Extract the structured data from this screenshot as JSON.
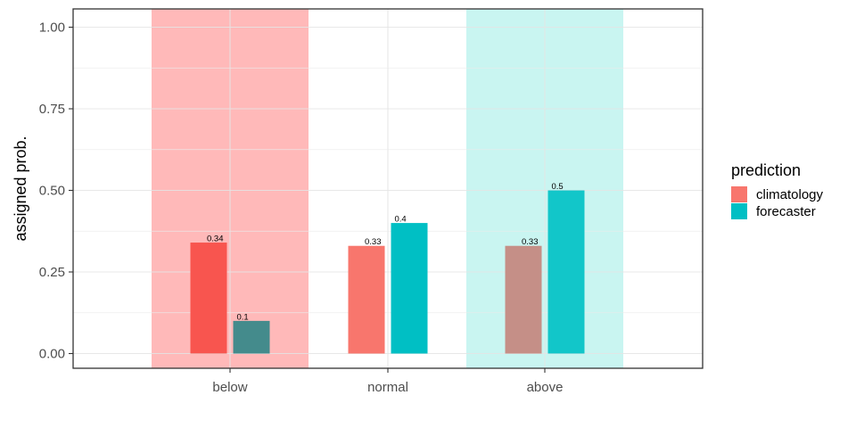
{
  "chart_data": {
    "type": "bar",
    "categories": [
      "below",
      "normal",
      "above"
    ],
    "series": [
      {
        "name": "climatology",
        "values": [
          0.34,
          0.33,
          0.33
        ],
        "labels": [
          "0.34",
          "0.33",
          "0.33"
        ]
      },
      {
        "name": "forecaster",
        "values": [
          0.1,
          0.4,
          0.5
        ],
        "labels": [
          "0.1",
          "0.4",
          "0.5"
        ]
      }
    ],
    "bar_colors": [
      [
        "#f8554f",
        "#448b8c"
      ],
      [
        "#f8766d",
        "#00bfc4"
      ],
      [
        "#c58f87",
        "#12c6c9"
      ]
    ],
    "highlight_bands": [
      {
        "category": "below",
        "color": "#ffb9b9"
      },
      {
        "category": "above",
        "color": "#c9f5f1"
      }
    ],
    "ylabel": "assigned prob.",
    "xlabel": "",
    "ylim": [
      0,
      1
    ],
    "y_ticks": [
      "0.00",
      "0.25",
      "0.50",
      "0.75",
      "1.00"
    ],
    "grid": true,
    "legend": {
      "title": "prediction",
      "position": "right",
      "entries": [
        {
          "name": "climatology",
          "color": "#f8766d"
        },
        {
          "name": "forecaster",
          "color": "#00bfc4"
        }
      ]
    }
  }
}
